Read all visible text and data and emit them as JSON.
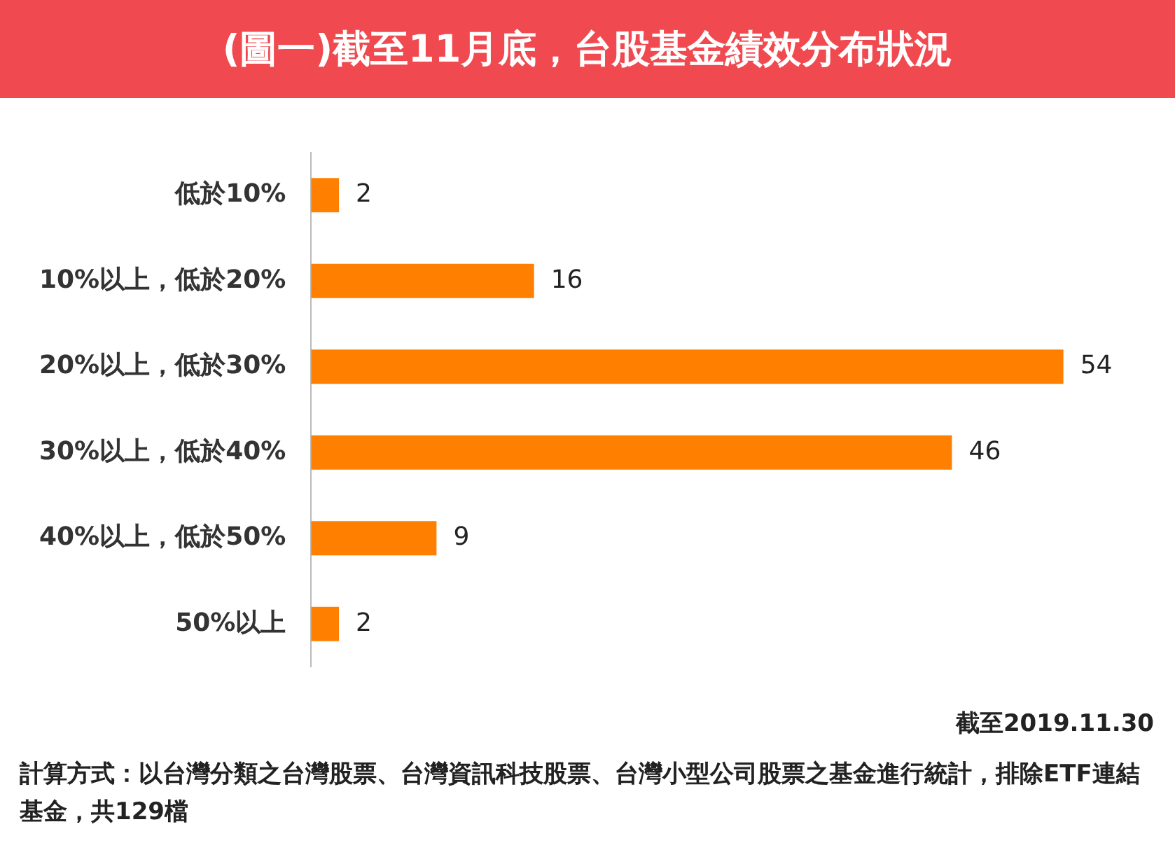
{
  "chart_data": {
    "type": "bar",
    "orientation": "horizontal",
    "title": "(圖一)截至11月底，台股基金績效分布狀況",
    "categories": [
      "低於10%",
      "10%以上，低於20%",
      "20%以上，低於30%",
      "30%以上，低於40%",
      "40%以上，低於50%",
      "50%以上"
    ],
    "values": [
      2,
      16,
      54,
      46,
      9,
      2
    ],
    "color": "#ff8000",
    "data_labels": true,
    "annotations": [
      "截至2019.11.30",
      "計算方式：以台灣分類之台灣股票、台灣資訊科技股票、台灣小型公司股票之基金進行統計，排除ETF連結基金，共129檔"
    ]
  }
}
